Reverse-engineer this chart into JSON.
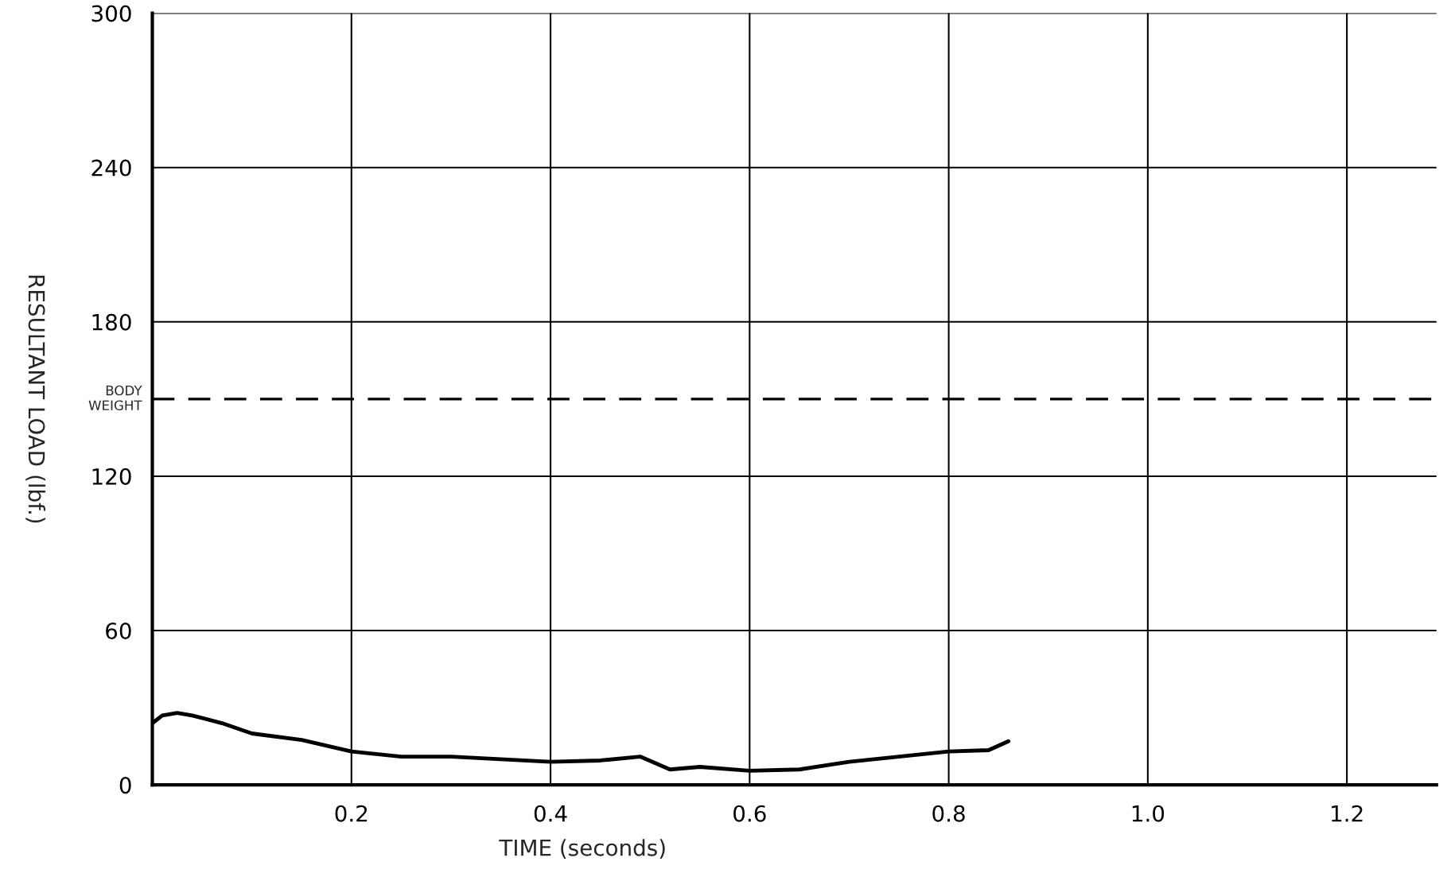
{
  "chart_data": {
    "type": "line",
    "xlabel": "TIME (seconds)",
    "ylabel": "RESULTANT LOAD (lbf.)",
    "xlim": [
      0,
      1.29
    ],
    "ylim": [
      0,
      300
    ],
    "xticks": [
      0.2,
      0.4,
      0.6,
      0.8,
      {
        "value": 1.0,
        "label": "1.0"
      },
      1.2
    ],
    "yticks": [
      0,
      60,
      120,
      180,
      240,
      300
    ],
    "grid": true,
    "series": [
      {
        "color": "#000000",
        "x": [
          0,
          0.01,
          0.025,
          0.04,
          0.07,
          0.1,
          0.15,
          0.2,
          0.25,
          0.3,
          0.35,
          0.4,
          0.45,
          0.49,
          0.52,
          0.55,
          0.6,
          0.65,
          0.7,
          0.75,
          0.8,
          0.84,
          0.86
        ],
        "values": [
          24,
          27,
          28,
          27,
          24,
          20,
          17.5,
          13,
          11,
          11,
          10,
          9,
          9.5,
          11,
          6,
          7,
          5.5,
          6,
          9,
          11,
          13,
          13.5,
          17
        ]
      }
    ],
    "ref_lines": [
      {
        "axis": "y",
        "value": 150,
        "label": "BODY\nWEIGHT",
        "color": "#000000",
        "line_style": "dashed"
      }
    ]
  }
}
